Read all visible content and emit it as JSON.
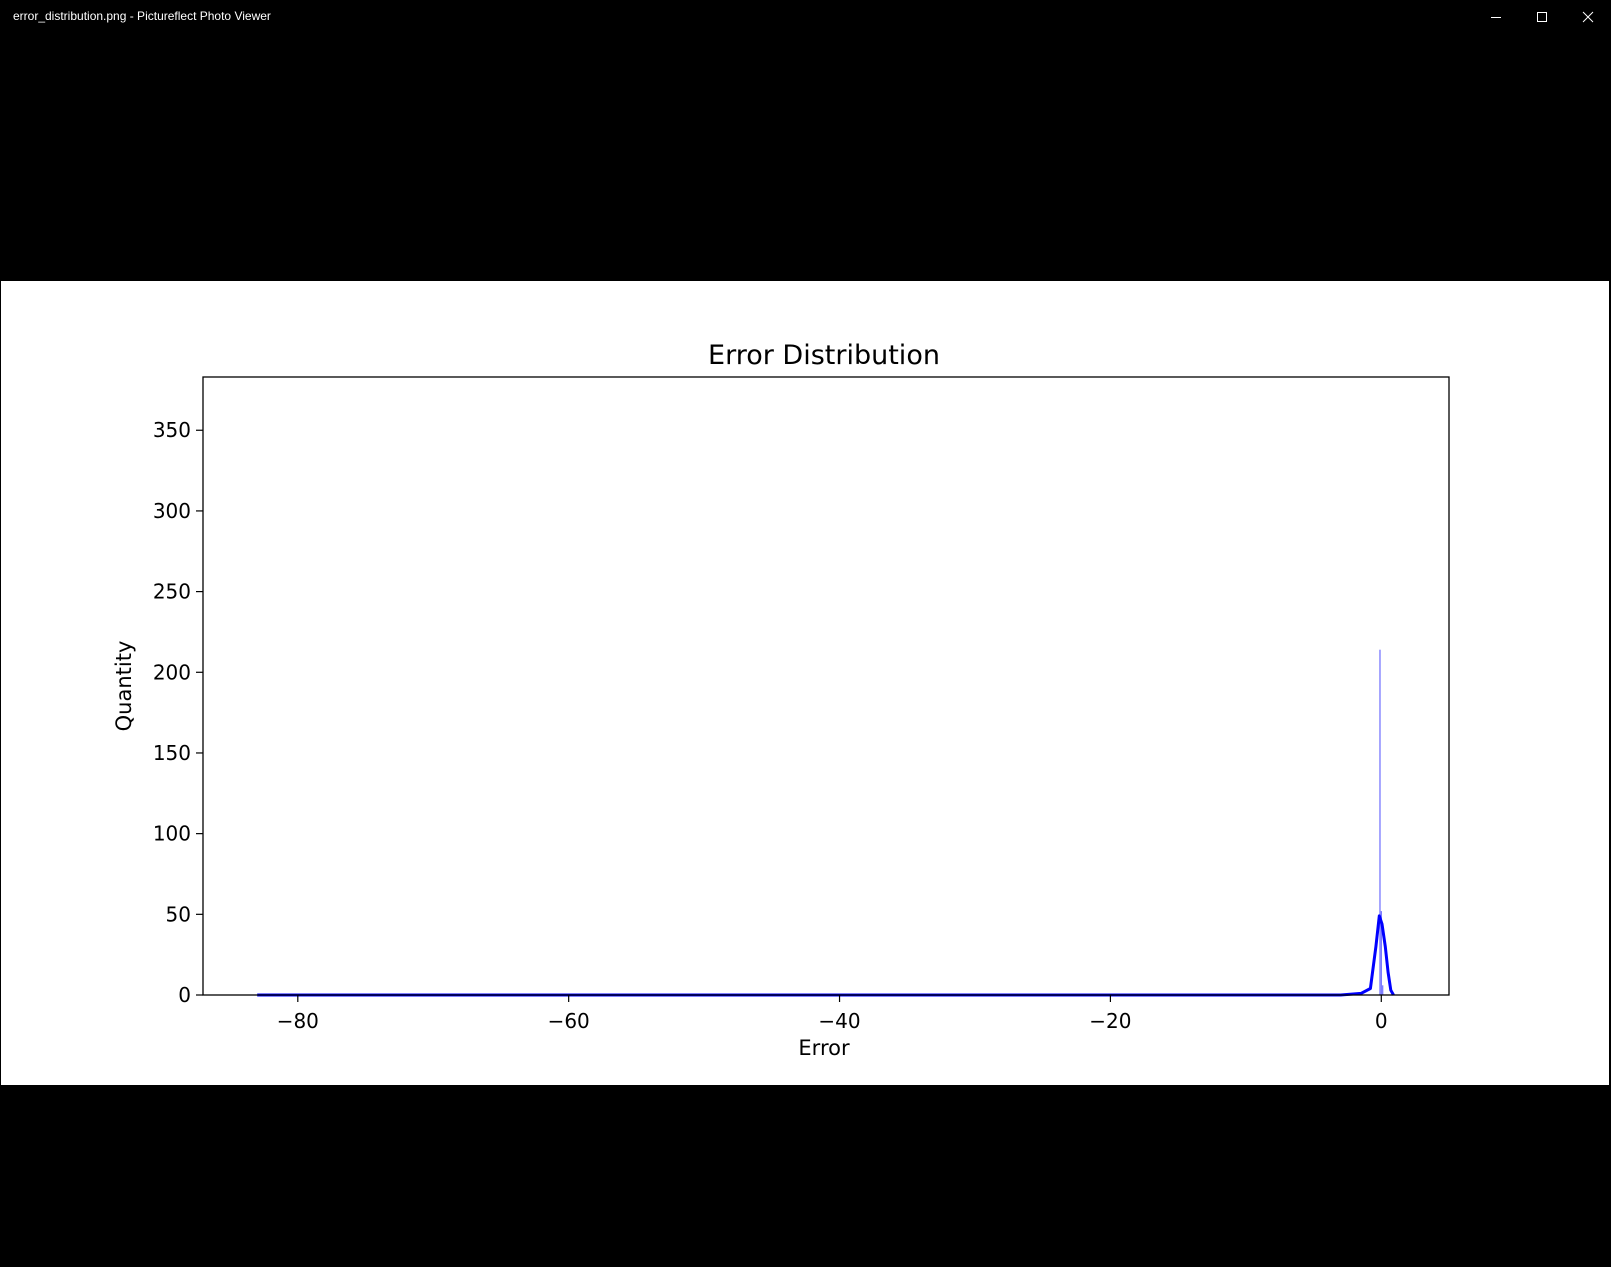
{
  "window": {
    "title": "error_distribution.png - Pictureflect Photo Viewer",
    "minimize_label": "Minimize",
    "maximize_label": "Maximize",
    "close_label": "Close"
  },
  "colors": {
    "line": "#0000ff",
    "bar": "#4c4cff",
    "frame": "#000000"
  },
  "chart_data": {
    "type": "bar",
    "title": "Error Distribution",
    "xlabel": "Error",
    "ylabel": "Quantity",
    "xlim": [
      -87,
      5
    ],
    "ylim": [
      0,
      383
    ],
    "x_ticks": [
      -80,
      -60,
      -40,
      -20,
      0
    ],
    "x_tick_labels": [
      "−80",
      "−60",
      "−40",
      "−20",
      "0"
    ],
    "y_ticks": [
      0,
      50,
      100,
      150,
      200,
      250,
      300,
      350
    ],
    "y_tick_labels": [
      "0",
      "50",
      "100",
      "150",
      "200",
      "250",
      "300",
      "350"
    ],
    "histogram": {
      "bins": [
        {
          "x": -0.1,
          "count": 214
        },
        {
          "x": 0.0,
          "count": 52
        },
        {
          "x": 0.1,
          "count": 6
        }
      ]
    },
    "kde_line": {
      "x": [
        -83,
        -60,
        -40,
        -20,
        -3,
        -1.5,
        -0.8,
        -0.4,
        -0.15,
        0.05,
        0.3,
        0.5,
        0.7,
        0.9
      ],
      "y": [
        0,
        0,
        0,
        0,
        0,
        1,
        4,
        30,
        49,
        44,
        30,
        14,
        3,
        0
      ]
    }
  }
}
